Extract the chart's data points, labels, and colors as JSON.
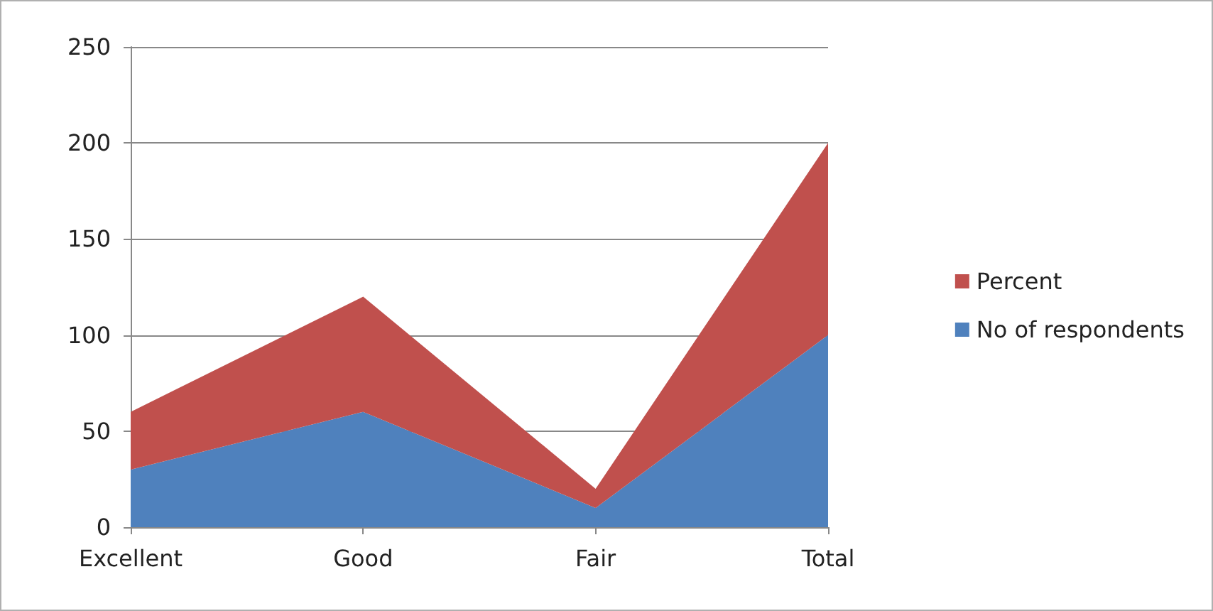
{
  "chart_data": {
    "type": "area",
    "stacked": true,
    "categories": [
      "Excellent",
      "Good",
      "Fair",
      "Total"
    ],
    "series": [
      {
        "name": "No of respondents",
        "color": "#4f81bd",
        "values": [
          30,
          60,
          10,
          100
        ]
      },
      {
        "name": "Percent",
        "color": "#c0504d",
        "values": [
          30,
          60,
          10,
          100
        ]
      }
    ],
    "ylim": [
      0,
      250
    ],
    "yticks": [
      0,
      50,
      100,
      150,
      200,
      250
    ],
    "grid": "y",
    "legend": "right"
  }
}
